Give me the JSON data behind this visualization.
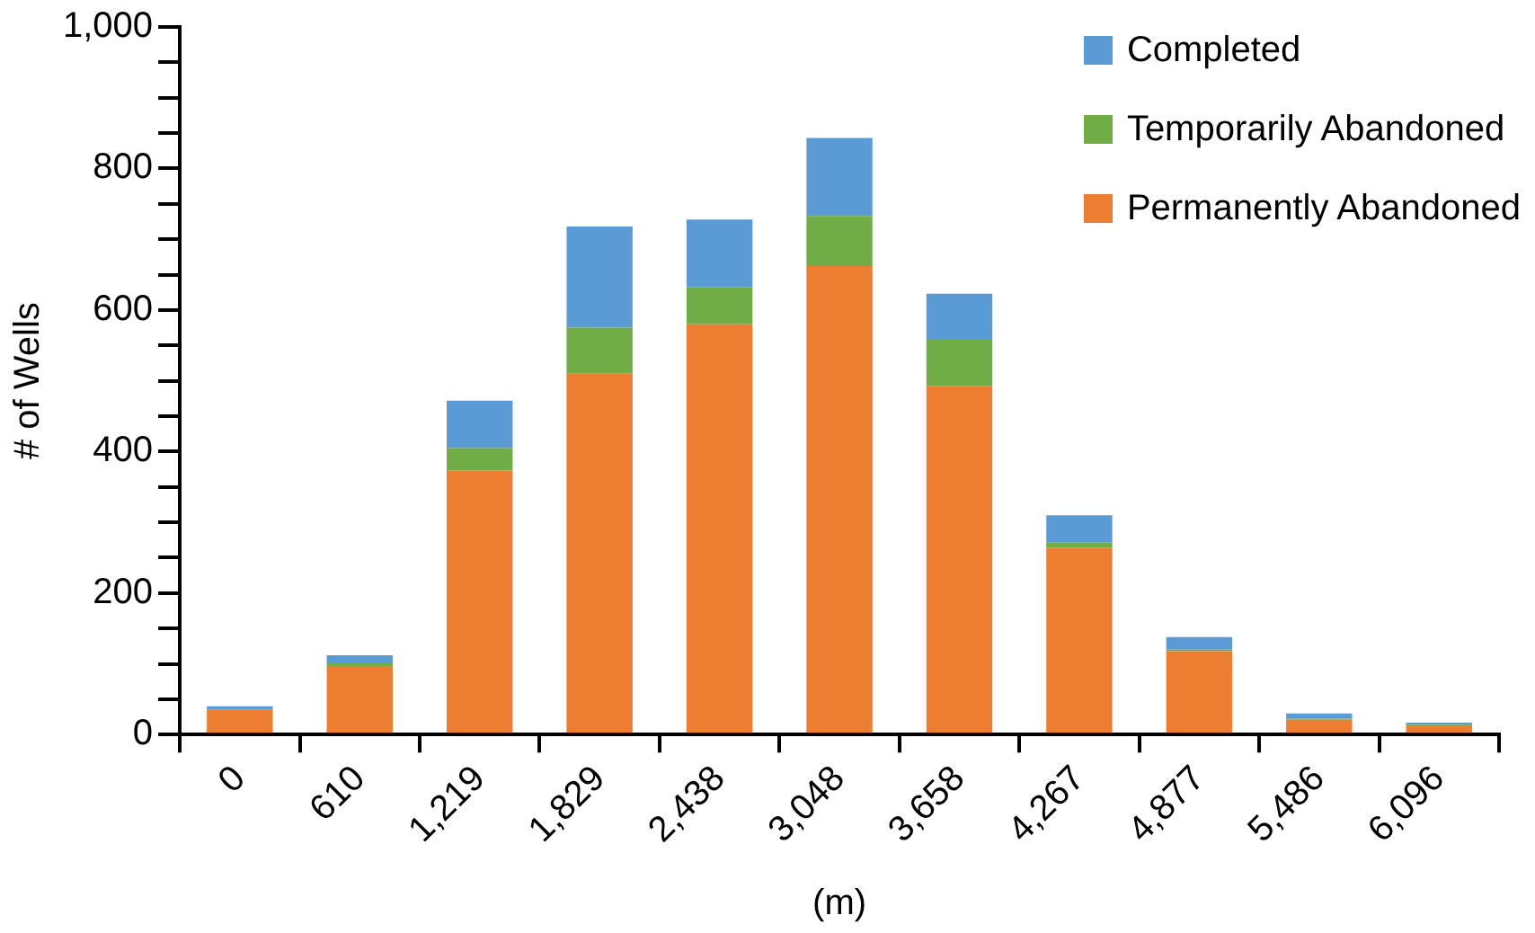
{
  "chart_data": {
    "type": "bar",
    "stacked": true,
    "xlabel": "(m)",
    "ylabel": "# of Wells",
    "categories": [
      "0",
      "610",
      "1,219",
      "1,829",
      "2,438",
      "3,048",
      "3,658",
      "4,267",
      "4,877",
      "5,486",
      "6,096"
    ],
    "series": [
      {
        "name": "Permanently Abandoned",
        "color": "#ed7d31",
        "values": [
          35,
          97,
          373,
          510,
          580,
          662,
          493,
          264,
          118,
          21,
          13
        ]
      },
      {
        "name": "Temporarily Abandoned",
        "color": "#70ad47",
        "values": [
          1,
          5,
          32,
          65,
          52,
          71,
          65,
          8,
          2,
          2,
          1
        ]
      },
      {
        "name": "Completed",
        "color": "#5b9bd5",
        "values": [
          4,
          10,
          67,
          143,
          96,
          110,
          65,
          38,
          18,
          7,
          3
        ]
      }
    ],
    "ylim": [
      0,
      1000
    ],
    "yticks": [
      0,
      {
        "value": 50,
        "label": null
      },
      {
        "value": 100,
        "label": null
      },
      {
        "value": 150,
        "label": null
      },
      200,
      {
        "value": 250,
        "label": null
      },
      {
        "value": 300,
        "label": null
      },
      {
        "value": 350,
        "label": null
      },
      400,
      {
        "value": 450,
        "label": null
      },
      {
        "value": 500,
        "label": null
      },
      {
        "value": 550,
        "label": null
      },
      600,
      {
        "value": 650,
        "label": null
      },
      {
        "value": 700,
        "label": null
      },
      {
        "value": 750,
        "label": null
      },
      800,
      {
        "value": 850,
        "label": null
      },
      {
        "value": 900,
        "label": null
      },
      {
        "value": 950,
        "label": null
      },
      {
        "value": 1000,
        "label": "1,000"
      }
    ],
    "grid": false,
    "legend": "top right"
  }
}
